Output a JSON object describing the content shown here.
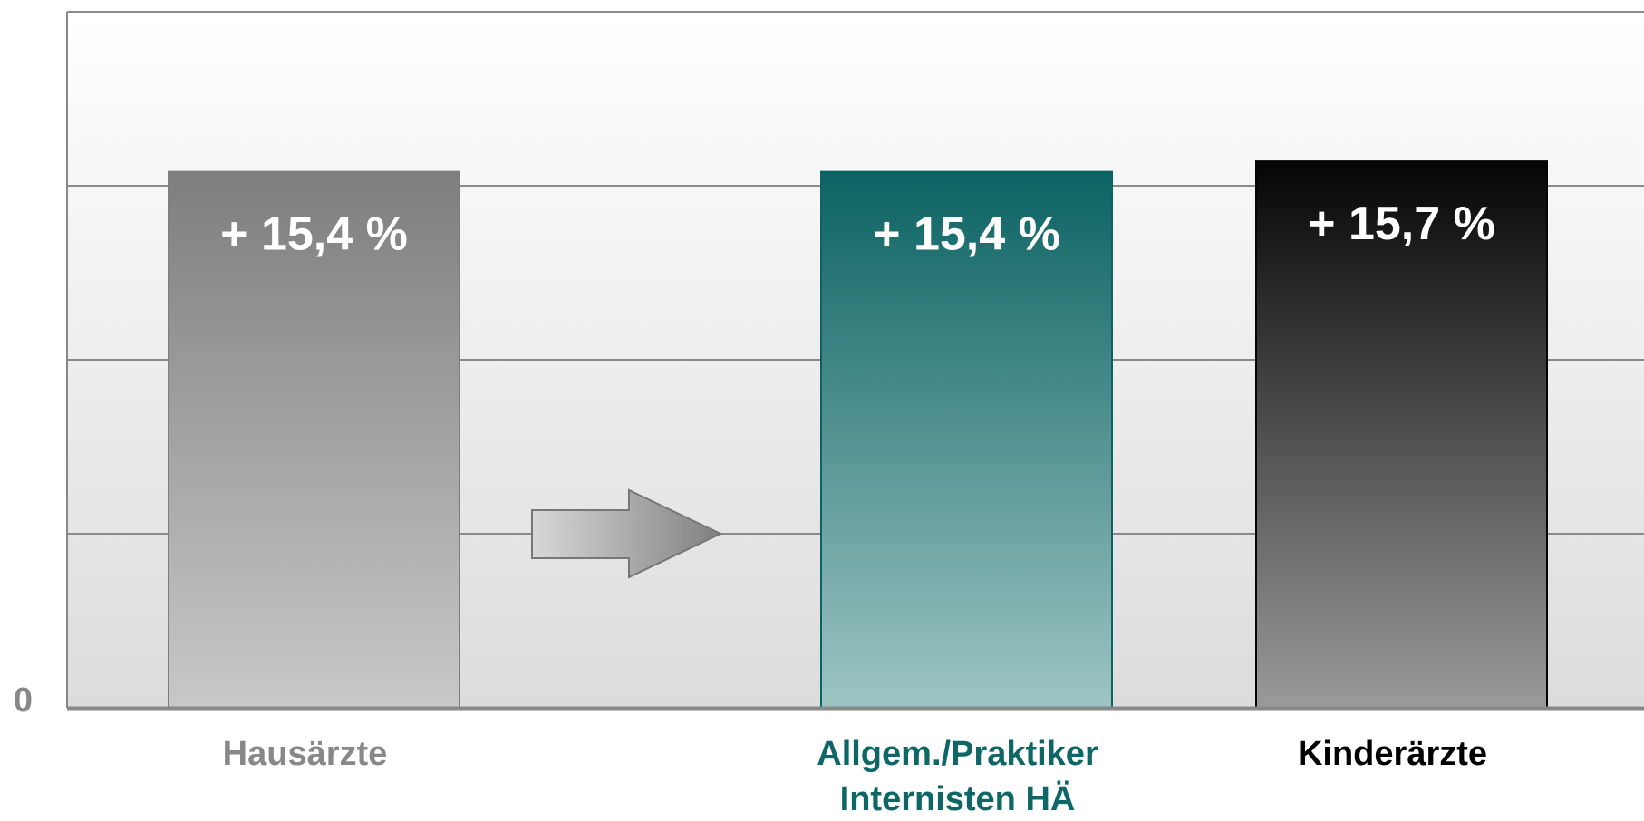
{
  "chart_data": {
    "type": "bar",
    "categories": [
      "Hausärzte",
      "Allgem./Praktiker\nInternisten HÄ",
      "Kinderärzte"
    ],
    "values": [
      15.4,
      15.4,
      15.7
    ],
    "value_labels": [
      "+ 15,4 %",
      "+ 15,4 %",
      "+ 15,7 %"
    ],
    "colors": [
      [
        "#7e7e7e",
        "#c8c8c8"
      ],
      [
        "#0c6363",
        "#9dc5c3"
      ],
      [
        "#050505",
        "#9a9a9a"
      ]
    ],
    "category_colors": [
      "#888888",
      "#0e6666",
      "#000000"
    ],
    "ylim": [
      0,
      20
    ],
    "yticks": [
      0
    ],
    "gridlines": [
      5,
      10,
      15,
      20
    ],
    "grid": true
  }
}
